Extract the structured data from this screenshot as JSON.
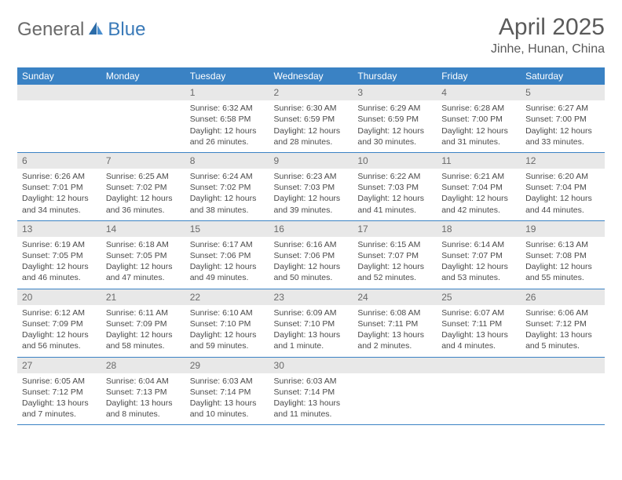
{
  "brand": {
    "part1": "General",
    "part2": "Blue"
  },
  "title": "April 2025",
  "location": "Jinhe, Hunan, China",
  "colors": {
    "header_bg": "#3a82c4",
    "header_text": "#ffffff",
    "daynum_bg": "#e8e8e8",
    "daynum_text": "#6a6a6a",
    "body_text": "#4a4a4a",
    "row_border": "#3a82c4",
    "title_text": "#5a5a5a",
    "brand_gray": "#6a6a6a",
    "brand_blue": "#3a7ab8"
  },
  "day_headers": [
    "Sunday",
    "Monday",
    "Tuesday",
    "Wednesday",
    "Thursday",
    "Friday",
    "Saturday"
  ],
  "weeks": [
    [
      {
        "blank": true
      },
      {
        "blank": true
      },
      {
        "num": "1",
        "sunrise": "Sunrise: 6:32 AM",
        "sunset": "Sunset: 6:58 PM",
        "day1": "Daylight: 12 hours",
        "day2": "and 26 minutes."
      },
      {
        "num": "2",
        "sunrise": "Sunrise: 6:30 AM",
        "sunset": "Sunset: 6:59 PM",
        "day1": "Daylight: 12 hours",
        "day2": "and 28 minutes."
      },
      {
        "num": "3",
        "sunrise": "Sunrise: 6:29 AM",
        "sunset": "Sunset: 6:59 PM",
        "day1": "Daylight: 12 hours",
        "day2": "and 30 minutes."
      },
      {
        "num": "4",
        "sunrise": "Sunrise: 6:28 AM",
        "sunset": "Sunset: 7:00 PM",
        "day1": "Daylight: 12 hours",
        "day2": "and 31 minutes."
      },
      {
        "num": "5",
        "sunrise": "Sunrise: 6:27 AM",
        "sunset": "Sunset: 7:00 PM",
        "day1": "Daylight: 12 hours",
        "day2": "and 33 minutes."
      }
    ],
    [
      {
        "num": "6",
        "sunrise": "Sunrise: 6:26 AM",
        "sunset": "Sunset: 7:01 PM",
        "day1": "Daylight: 12 hours",
        "day2": "and 34 minutes."
      },
      {
        "num": "7",
        "sunrise": "Sunrise: 6:25 AM",
        "sunset": "Sunset: 7:02 PM",
        "day1": "Daylight: 12 hours",
        "day2": "and 36 minutes."
      },
      {
        "num": "8",
        "sunrise": "Sunrise: 6:24 AM",
        "sunset": "Sunset: 7:02 PM",
        "day1": "Daylight: 12 hours",
        "day2": "and 38 minutes."
      },
      {
        "num": "9",
        "sunrise": "Sunrise: 6:23 AM",
        "sunset": "Sunset: 7:03 PM",
        "day1": "Daylight: 12 hours",
        "day2": "and 39 minutes."
      },
      {
        "num": "10",
        "sunrise": "Sunrise: 6:22 AM",
        "sunset": "Sunset: 7:03 PM",
        "day1": "Daylight: 12 hours",
        "day2": "and 41 minutes."
      },
      {
        "num": "11",
        "sunrise": "Sunrise: 6:21 AM",
        "sunset": "Sunset: 7:04 PM",
        "day1": "Daylight: 12 hours",
        "day2": "and 42 minutes."
      },
      {
        "num": "12",
        "sunrise": "Sunrise: 6:20 AM",
        "sunset": "Sunset: 7:04 PM",
        "day1": "Daylight: 12 hours",
        "day2": "and 44 minutes."
      }
    ],
    [
      {
        "num": "13",
        "sunrise": "Sunrise: 6:19 AM",
        "sunset": "Sunset: 7:05 PM",
        "day1": "Daylight: 12 hours",
        "day2": "and 46 minutes."
      },
      {
        "num": "14",
        "sunrise": "Sunrise: 6:18 AM",
        "sunset": "Sunset: 7:05 PM",
        "day1": "Daylight: 12 hours",
        "day2": "and 47 minutes."
      },
      {
        "num": "15",
        "sunrise": "Sunrise: 6:17 AM",
        "sunset": "Sunset: 7:06 PM",
        "day1": "Daylight: 12 hours",
        "day2": "and 49 minutes."
      },
      {
        "num": "16",
        "sunrise": "Sunrise: 6:16 AM",
        "sunset": "Sunset: 7:06 PM",
        "day1": "Daylight: 12 hours",
        "day2": "and 50 minutes."
      },
      {
        "num": "17",
        "sunrise": "Sunrise: 6:15 AM",
        "sunset": "Sunset: 7:07 PM",
        "day1": "Daylight: 12 hours",
        "day2": "and 52 minutes."
      },
      {
        "num": "18",
        "sunrise": "Sunrise: 6:14 AM",
        "sunset": "Sunset: 7:07 PM",
        "day1": "Daylight: 12 hours",
        "day2": "and 53 minutes."
      },
      {
        "num": "19",
        "sunrise": "Sunrise: 6:13 AM",
        "sunset": "Sunset: 7:08 PM",
        "day1": "Daylight: 12 hours",
        "day2": "and 55 minutes."
      }
    ],
    [
      {
        "num": "20",
        "sunrise": "Sunrise: 6:12 AM",
        "sunset": "Sunset: 7:09 PM",
        "day1": "Daylight: 12 hours",
        "day2": "and 56 minutes."
      },
      {
        "num": "21",
        "sunrise": "Sunrise: 6:11 AM",
        "sunset": "Sunset: 7:09 PM",
        "day1": "Daylight: 12 hours",
        "day2": "and 58 minutes."
      },
      {
        "num": "22",
        "sunrise": "Sunrise: 6:10 AM",
        "sunset": "Sunset: 7:10 PM",
        "day1": "Daylight: 12 hours",
        "day2": "and 59 minutes."
      },
      {
        "num": "23",
        "sunrise": "Sunrise: 6:09 AM",
        "sunset": "Sunset: 7:10 PM",
        "day1": "Daylight: 13 hours",
        "day2": "and 1 minute."
      },
      {
        "num": "24",
        "sunrise": "Sunrise: 6:08 AM",
        "sunset": "Sunset: 7:11 PM",
        "day1": "Daylight: 13 hours",
        "day2": "and 2 minutes."
      },
      {
        "num": "25",
        "sunrise": "Sunrise: 6:07 AM",
        "sunset": "Sunset: 7:11 PM",
        "day1": "Daylight: 13 hours",
        "day2": "and 4 minutes."
      },
      {
        "num": "26",
        "sunrise": "Sunrise: 6:06 AM",
        "sunset": "Sunset: 7:12 PM",
        "day1": "Daylight: 13 hours",
        "day2": "and 5 minutes."
      }
    ],
    [
      {
        "num": "27",
        "sunrise": "Sunrise: 6:05 AM",
        "sunset": "Sunset: 7:12 PM",
        "day1": "Daylight: 13 hours",
        "day2": "and 7 minutes."
      },
      {
        "num": "28",
        "sunrise": "Sunrise: 6:04 AM",
        "sunset": "Sunset: 7:13 PM",
        "day1": "Daylight: 13 hours",
        "day2": "and 8 minutes."
      },
      {
        "num": "29",
        "sunrise": "Sunrise: 6:03 AM",
        "sunset": "Sunset: 7:14 PM",
        "day1": "Daylight: 13 hours",
        "day2": "and 10 minutes."
      },
      {
        "num": "30",
        "sunrise": "Sunrise: 6:03 AM",
        "sunset": "Sunset: 7:14 PM",
        "day1": "Daylight: 13 hours",
        "day2": "and 11 minutes."
      },
      {
        "blank": true
      },
      {
        "blank": true
      },
      {
        "blank": true
      }
    ]
  ]
}
